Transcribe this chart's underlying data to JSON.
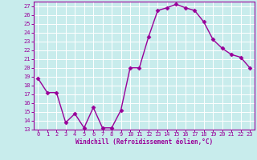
{
  "x": [
    0,
    1,
    2,
    3,
    4,
    5,
    6,
    7,
    8,
    9,
    10,
    11,
    12,
    13,
    14,
    15,
    16,
    17,
    18,
    19,
    20,
    21,
    22,
    23
  ],
  "y": [
    18.8,
    17.2,
    17.2,
    13.8,
    14.8,
    13.2,
    15.5,
    13.2,
    13.2,
    15.2,
    20.0,
    20.0,
    23.5,
    26.5,
    26.8,
    27.2,
    26.8,
    26.5,
    25.2,
    23.2,
    22.2,
    21.5,
    21.2,
    20.0
  ],
  "line_color": "#990099",
  "marker": "D",
  "marker_size": 2.5,
  "xlim": [
    -0.5,
    23.5
  ],
  "ylim": [
    13,
    27.5
  ],
  "yticks": [
    13,
    14,
    15,
    16,
    17,
    18,
    19,
    20,
    21,
    22,
    23,
    24,
    25,
    26,
    27
  ],
  "xticks": [
    0,
    1,
    2,
    3,
    4,
    5,
    6,
    7,
    8,
    9,
    10,
    11,
    12,
    13,
    14,
    15,
    16,
    17,
    18,
    19,
    20,
    21,
    22,
    23
  ],
  "xlabel": "Windchill (Refroidissement éolien,°C)",
  "background_color": "#c8ecec",
  "grid_color": "#ffffff",
  "tick_color": "#990099",
  "label_color": "#990099",
  "spine_color": "#990099",
  "linewidth": 1.0,
  "tick_labelsize": 5,
  "xlabel_fontsize": 5.5
}
